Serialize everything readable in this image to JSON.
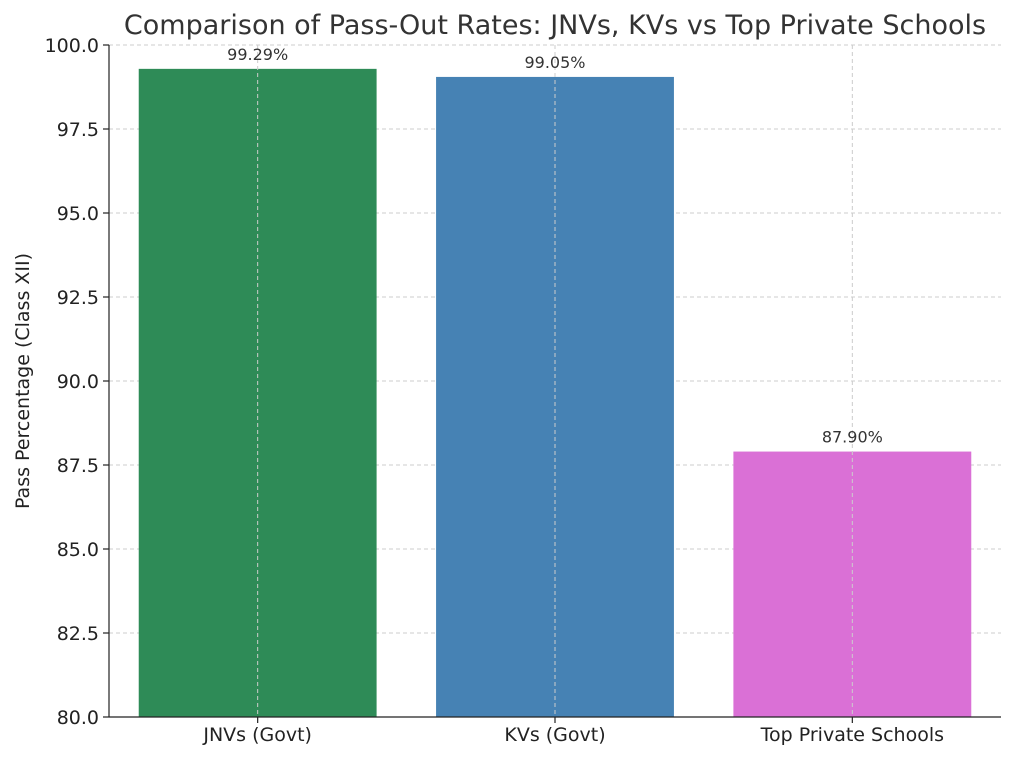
{
  "chart_data": {
    "type": "bar",
    "title": "Comparison of Pass-Out Rates: JNVs, KVs vs Top Private Schools",
    "xlabel": "",
    "ylabel": "Pass Percentage (Class XII)",
    "categories": [
      "JNVs (Govt)",
      "KVs (Govt)",
      "Top Private Schools"
    ],
    "values": [
      99.29,
      99.05,
      87.9
    ],
    "data_labels": [
      "99.29%",
      "99.05%",
      "87.90%"
    ],
    "colors": [
      "#2e8b57",
      "#4682b4",
      "#da70d6"
    ],
    "ylim": [
      80.0,
      100.0
    ],
    "yticks": [
      80.0,
      82.5,
      85.0,
      87.5,
      90.0,
      92.5,
      95.0,
      97.5,
      100.0
    ],
    "ytick_labels": [
      "80.0",
      "82.5",
      "85.0",
      "87.5",
      "90.0",
      "92.5",
      "95.0",
      "97.5",
      "100.0"
    ],
    "grid": true,
    "legend": "none"
  }
}
